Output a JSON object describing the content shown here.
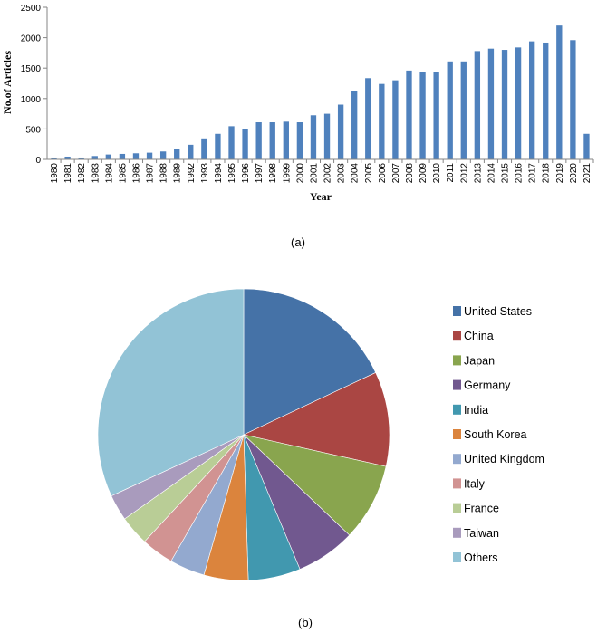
{
  "colors": {
    "bar": "#4f81bd",
    "axis": "#868686",
    "text": "#000000"
  },
  "captions": {
    "a": "(a)",
    "b": "(b)"
  },
  "chart_data": [
    {
      "type": "bar",
      "xlabel": "Year",
      "ylabel": "No.of Articles",
      "ylim": [
        0,
        2500
      ],
      "yticks": [
        0,
        500,
        1000,
        1500,
        2000,
        2500
      ],
      "grid": false,
      "categories": [
        "1980",
        "1981",
        "1982",
        "1983",
        "1984",
        "1985",
        "1986",
        "1987",
        "1988",
        "1989",
        "1992",
        "1993",
        "1994",
        "1995",
        "1996",
        "1997",
        "1998",
        "1999",
        "2000",
        "2001",
        "2002",
        "2003",
        "2004",
        "2005",
        "2006",
        "2007",
        "2008",
        "2009",
        "2010",
        "2011",
        "2012",
        "2013",
        "2014",
        "2015",
        "2016",
        "2017",
        "2018",
        "2019",
        "2020",
        "2021"
      ],
      "values": [
        30,
        45,
        30,
        55,
        80,
        90,
        100,
        110,
        130,
        165,
        240,
        345,
        420,
        545,
        500,
        610,
        610,
        620,
        610,
        725,
        750,
        900,
        1120,
        1335,
        1240,
        1300,
        1460,
        1440,
        1430,
        1610,
        1610,
        1780,
        1820,
        1800,
        1840,
        1940,
        1920,
        2200,
        1960,
        420
      ]
    },
    {
      "type": "pie",
      "legend": "right",
      "start_angle_deg": 0,
      "direction": "clockwise",
      "series": [
        {
          "name": "United States",
          "value": 18.0,
          "color": "#4572a7"
        },
        {
          "name": "China",
          "value": 10.5,
          "color": "#aa4643"
        },
        {
          "name": "Japan",
          "value": 8.6,
          "color": "#89a54e"
        },
        {
          "name": "Germany",
          "value": 6.6,
          "color": "#71588f"
        },
        {
          "name": "India",
          "value": 5.8,
          "color": "#4198af"
        },
        {
          "name": "South Korea",
          "value": 4.9,
          "color": "#db843d"
        },
        {
          "name": "United Kingdom",
          "value": 3.9,
          "color": "#93a9cf"
        },
        {
          "name": "Italy",
          "value": 3.6,
          "color": "#d19392"
        },
        {
          "name": "France",
          "value": 3.3,
          "color": "#b9cd96"
        },
        {
          "name": "Taiwan",
          "value": 2.9,
          "color": "#a99bbd"
        },
        {
          "name": "Others",
          "value": 31.9,
          "color": "#92c3d6"
        }
      ]
    }
  ]
}
